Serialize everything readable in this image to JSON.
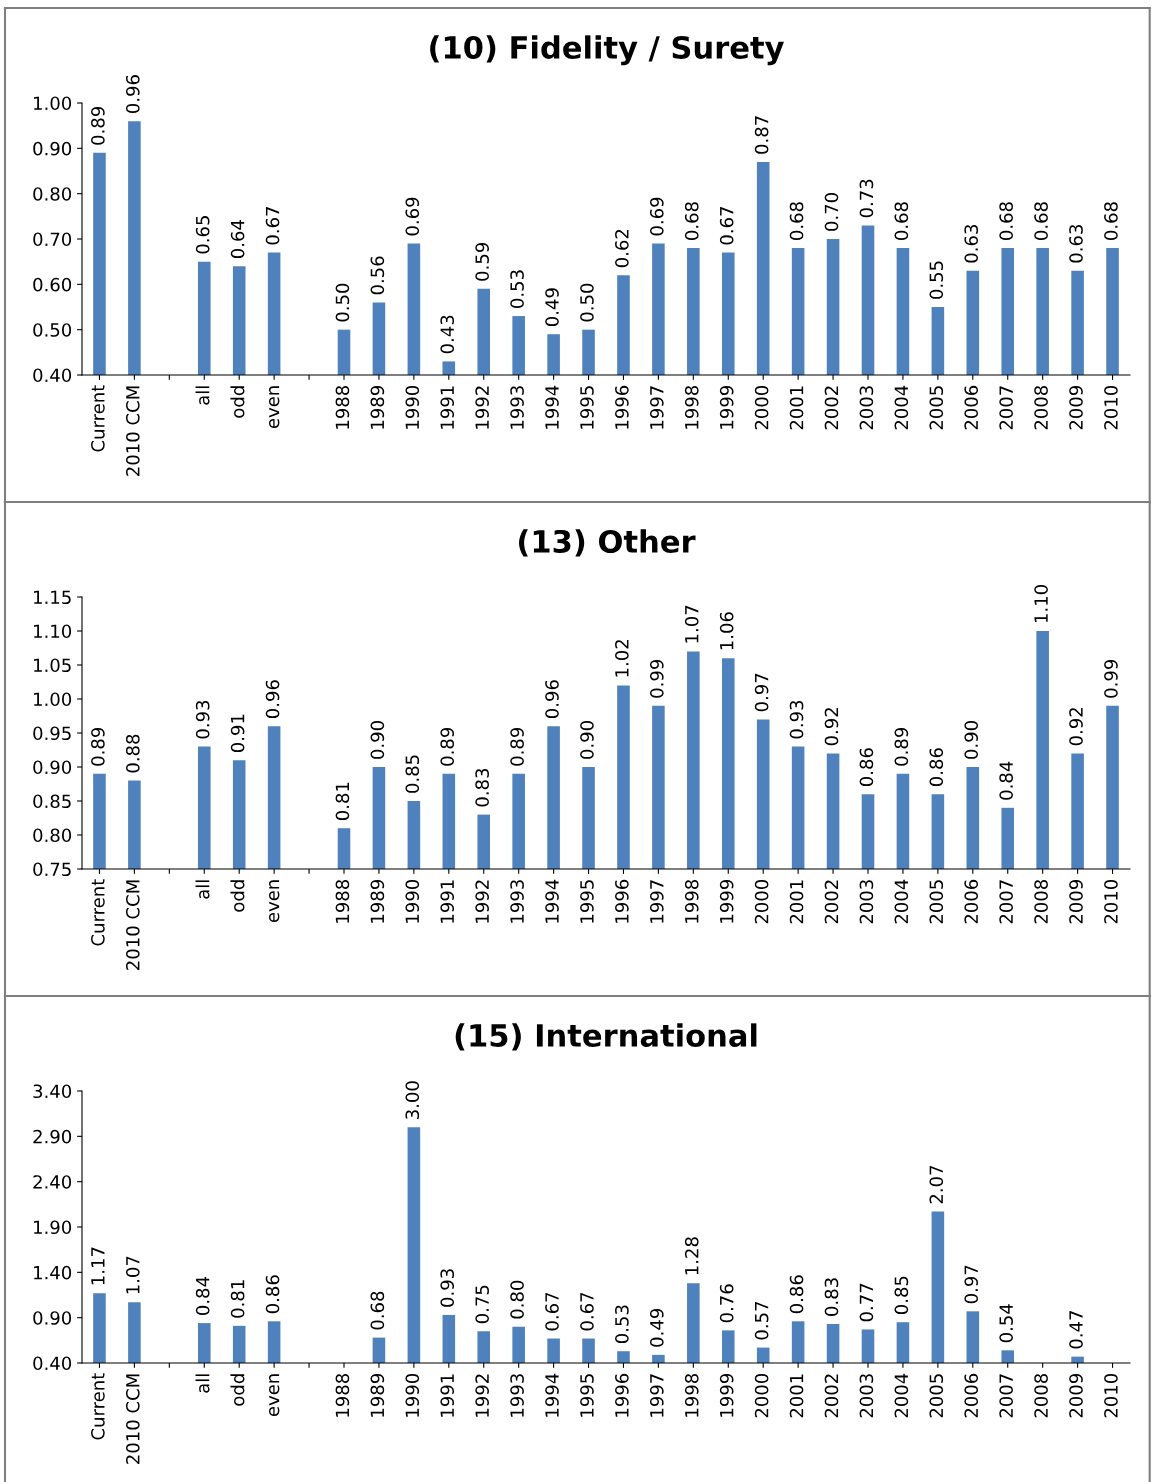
{
  "chart_data": [
    {
      "type": "bar",
      "title": "(10) Fidelity / Surety",
      "color": "#4f81bd",
      "grid": false,
      "categories": [
        "Current",
        "2010 CCM",
        null,
        "all",
        "odd",
        "even",
        null,
        "1988",
        "1989",
        "1990",
        "1991",
        "1992",
        "1993",
        "1994",
        "1995",
        "1996",
        "1997",
        "1998",
        "1999",
        "2000",
        "2001",
        "2002",
        "2003",
        "2004",
        "2005",
        "2006",
        "2007",
        "2008",
        "2009",
        "2010"
      ],
      "values": [
        0.89,
        0.96,
        null,
        0.65,
        0.64,
        0.67,
        null,
        0.5,
        0.56,
        0.69,
        0.43,
        0.59,
        0.53,
        0.49,
        0.5,
        0.62,
        0.69,
        0.68,
        0.67,
        0.87,
        0.68,
        0.7,
        0.73,
        0.68,
        0.55,
        0.63,
        0.68,
        0.68,
        0.63,
        0.68
      ],
      "value_labels": [
        "0.89",
        "0.96",
        null,
        "0.65",
        "0.64",
        "0.67",
        null,
        "0.50",
        "0.56",
        "0.69",
        "0.43",
        "0.59",
        "0.53",
        "0.49",
        "0.50",
        "0.62",
        "0.69",
        "0.68",
        "0.67",
        "0.87",
        "0.68",
        "0.70",
        "0.73",
        "0.68",
        "0.55",
        "0.63",
        "0.68",
        "0.68",
        "0.63",
        "0.68"
      ],
      "ylim": [
        0.4,
        1.0
      ],
      "yticks": [
        {
          "value": 0.4,
          "label": "0.40"
        },
        {
          "value": 0.5,
          "label": "0.50"
        },
        {
          "value": 0.6,
          "label": "0.60"
        },
        {
          "value": 0.7,
          "label": "0.70"
        },
        {
          "value": 0.8,
          "label": "0.80"
        },
        {
          "value": 0.9,
          "label": "0.90"
        },
        {
          "value": 1.0,
          "label": "1.00"
        }
      ]
    },
    {
      "type": "bar",
      "title": "(13) Other",
      "color": "#4f81bd",
      "grid": false,
      "categories": [
        "Current",
        "2010 CCM",
        null,
        "all",
        "odd",
        "even",
        null,
        "1988",
        "1989",
        "1990",
        "1991",
        "1992",
        "1993",
        "1994",
        "1995",
        "1996",
        "1997",
        "1998",
        "1999",
        "2000",
        "2001",
        "2002",
        "2003",
        "2004",
        "2005",
        "2006",
        "2007",
        "2008",
        "2009",
        "2010"
      ],
      "values": [
        0.89,
        0.88,
        null,
        0.93,
        0.91,
        0.96,
        null,
        0.81,
        0.9,
        0.85,
        0.89,
        0.83,
        0.89,
        0.96,
        0.9,
        1.02,
        0.99,
        1.07,
        1.06,
        0.97,
        0.93,
        0.92,
        0.86,
        0.89,
        0.86,
        0.9,
        0.84,
        1.1,
        0.92,
        0.99
      ],
      "value_labels": [
        "0.89",
        "0.88",
        null,
        "0.93",
        "0.91",
        "0.96",
        null,
        "0.81",
        "0.90",
        "0.85",
        "0.89",
        "0.83",
        "0.89",
        "0.96",
        "0.90",
        "1.02",
        "0.99",
        "1.07",
        "1.06",
        "0.97",
        "0.93",
        "0.92",
        "0.86",
        "0.89",
        "0.86",
        "0.90",
        "0.84",
        "1.10",
        "0.92",
        "0.99"
      ],
      "ylim": [
        0.75,
        1.15
      ],
      "yticks": [
        {
          "value": 0.75,
          "label": "0.75"
        },
        {
          "value": 0.8,
          "label": "0.80"
        },
        {
          "value": 0.85,
          "label": "0.85"
        },
        {
          "value": 0.9,
          "label": "0.90"
        },
        {
          "value": 0.95,
          "label": "0.95"
        },
        {
          "value": 1.0,
          "label": "1.00"
        },
        {
          "value": 1.05,
          "label": "1.05"
        },
        {
          "value": 1.1,
          "label": "1.10"
        },
        {
          "value": 1.15,
          "label": "1.15"
        }
      ]
    },
    {
      "type": "bar",
      "title": "(15) International",
      "color": "#4f81bd",
      "grid": false,
      "categories": [
        "Current",
        "2010 CCM",
        null,
        "all",
        "odd",
        "even",
        null,
        "1988",
        "1989",
        "1990",
        "1991",
        "1992",
        "1993",
        "1994",
        "1995",
        "1996",
        "1997",
        "1998",
        "1999",
        "2000",
        "2001",
        "2002",
        "2003",
        "2004",
        "2005",
        "2006",
        "2007",
        "2008",
        "2009",
        "2010"
      ],
      "values": [
        1.17,
        1.07,
        null,
        0.84,
        0.81,
        0.86,
        null,
        null,
        0.68,
        3.0,
        0.93,
        0.75,
        0.8,
        0.67,
        0.67,
        0.53,
        0.49,
        1.28,
        0.76,
        0.57,
        0.86,
        0.83,
        0.77,
        0.85,
        2.07,
        0.97,
        0.54,
        null,
        0.47,
        null
      ],
      "value_labels": [
        "1.17",
        "1.07",
        null,
        "0.84",
        "0.81",
        "0.86",
        null,
        null,
        "0.68",
        "3.00",
        "0.93",
        "0.75",
        "0.80",
        "0.67",
        "0.67",
        "0.53",
        "0.49",
        "1.28",
        "0.76",
        "0.57",
        "0.86",
        "0.83",
        "0.77",
        "0.85",
        "2.07",
        "0.97",
        "0.54",
        null,
        "0.47",
        null
      ],
      "ylim": [
        0.4,
        3.4
      ],
      "yticks": [
        {
          "value": 0.4,
          "label": "0.40"
        },
        {
          "value": 0.9,
          "label": "0.90"
        },
        {
          "value": 1.4,
          "label": "1.40"
        },
        {
          "value": 1.9,
          "label": "1.90"
        },
        {
          "value": 2.4,
          "label": "2.40"
        },
        {
          "value": 2.9,
          "label": "2.90"
        },
        {
          "value": 3.4,
          "label": "3.40"
        }
      ]
    }
  ]
}
